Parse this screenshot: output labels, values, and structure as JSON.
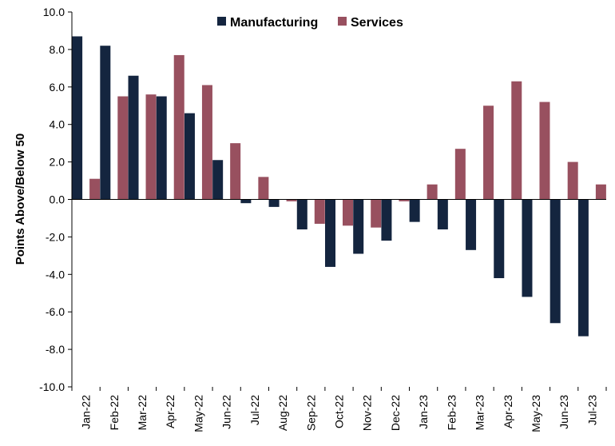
{
  "chart_data": {
    "type": "bar",
    "title": "",
    "xlabel": "",
    "ylabel": "Points Above/Below 50",
    "ylim": [
      -10,
      10
    ],
    "ytick_step": 2,
    "ytick_labels": [
      "10.0",
      "8.0",
      "6.0",
      "4.0",
      "2.0",
      "0.0",
      "-2.0",
      "-4.0",
      "-6.0",
      "-8.0",
      "-10.0"
    ],
    "grid": false,
    "legend": "top-center",
    "categories": [
      "Jan-22",
      "Feb-22",
      "Mar-22",
      "Apr-22",
      "May-22",
      "Jun-22",
      "Jul-22",
      "Aug-22",
      "Sep-22",
      "Oct-22",
      "Nov-22",
      "Dec-22",
      "Jan-23",
      "Feb-23",
      "Mar-23",
      "Apr-23",
      "May-23",
      "Jun-23",
      "Jul-23"
    ],
    "series": [
      {
        "name": "Manufacturing",
        "color": "#14253f",
        "values": [
          8.7,
          8.2,
          6.6,
          5.5,
          4.6,
          2.1,
          -0.2,
          -0.4,
          -1.6,
          -3.6,
          -2.9,
          -2.2,
          -1.2,
          -1.6,
          -2.7,
          -4.2,
          -5.2,
          -6.6,
          -7.3
        ]
      },
      {
        "name": "Services",
        "color": "#98505f",
        "values": [
          1.1,
          5.5,
          5.6,
          7.7,
          6.1,
          3.0,
          1.2,
          -0.1,
          -1.3,
          -1.4,
          -1.5,
          -0.1,
          0.8,
          2.7,
          5.0,
          6.3,
          5.2,
          2.0,
          0.8
        ]
      }
    ]
  }
}
